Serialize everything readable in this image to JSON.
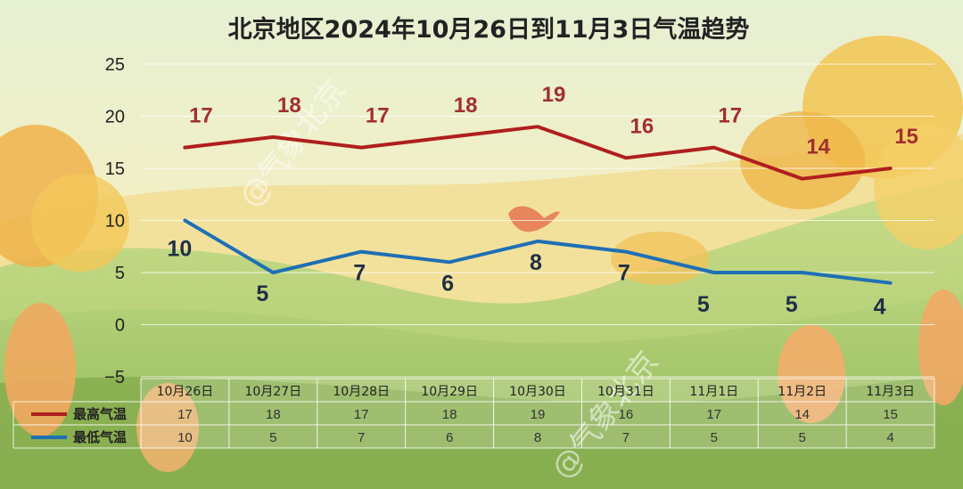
{
  "chart_data": {
    "type": "line",
    "title": "北京地区2024年10月26日到11月3日气温趋势",
    "categories": [
      "10月26日",
      "10月27日",
      "10月28日",
      "10月29日",
      "10月30日",
      "10月31日",
      "11月1日",
      "11月2日",
      "11月3日"
    ],
    "series": [
      {
        "name": "最高气温",
        "values": [
          17,
          18,
          17,
          18,
          19,
          16,
          17,
          14,
          15
        ],
        "color": "#b01e1e"
      },
      {
        "name": "最低气温",
        "values": [
          10,
          5,
          7,
          6,
          8,
          7,
          5,
          5,
          4
        ],
        "color": "#1e6fb5"
      }
    ],
    "ylim": [
      -5,
      25
    ],
    "yticks": [
      "25",
      "20",
      "15",
      "10",
      "5",
      "0",
      "−5"
    ],
    "xlabel": "",
    "ylabel": "",
    "grid": true,
    "data_table": true,
    "watermark": "@气象北京"
  }
}
